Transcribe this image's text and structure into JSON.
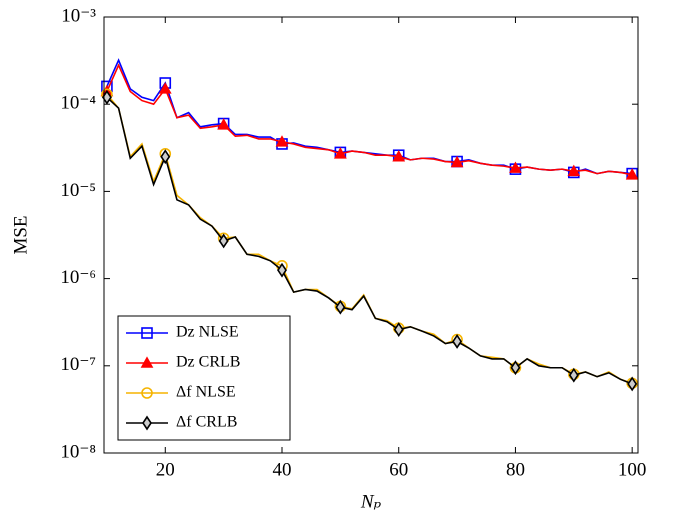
{
  "chart_data": {
    "type": "line",
    "xlabel": "Nₚ",
    "ylabel": "MSE",
    "log_y": true,
    "legend_position": "lower left",
    "xlim": [
      9.5,
      101
    ],
    "ylim": [
      1e-08,
      0.001
    ],
    "xticks": [
      20,
      40,
      60,
      80,
      100
    ],
    "yticks": [
      {
        "value": 1e-08,
        "label": "10⁻⁸"
      },
      {
        "value": 1e-07,
        "label": "10⁻⁷"
      },
      {
        "value": 1e-06,
        "label": "10⁻⁶"
      },
      {
        "value": 1e-05,
        "label": "10⁻⁵"
      },
      {
        "value": 0.0001,
        "label": "10⁻⁴"
      },
      {
        "value": 0.001,
        "label": "10⁻³"
      }
    ],
    "x": [
      10,
      12,
      14,
      16,
      18,
      20,
      22,
      24,
      26,
      28,
      30,
      32,
      34,
      36,
      38,
      40,
      42,
      44,
      46,
      48,
      50,
      52,
      54,
      56,
      58,
      60,
      62,
      64,
      66,
      68,
      70,
      72,
      74,
      76,
      78,
      80,
      82,
      84,
      86,
      88,
      90,
      92,
      94,
      96,
      98,
      100
    ],
    "series": [
      {
        "name": "Dz NLSE",
        "color": "#0000ff",
        "marker": "square",
        "values": [
          0.00016,
          0.00032,
          0.00015,
          0.00012,
          0.00011,
          0.000175,
          7e-05,
          8e-05,
          5.5e-05,
          5.8e-05,
          6e-05,
          4.5e-05,
          4.5e-05,
          4.2e-05,
          4.2e-05,
          3.5e-05,
          3.6e-05,
          3.3e-05,
          3.2e-05,
          3e-05,
          2.8e-05,
          2.9e-05,
          2.8e-05,
          2.7e-05,
          2.6e-05,
          2.6e-05,
          2.3e-05,
          2.4e-05,
          2.4e-05,
          2.2e-05,
          2.2e-05,
          2.3e-05,
          2.1e-05,
          2e-05,
          2e-05,
          1.8e-05,
          1.9e-05,
          1.8e-05,
          1.75e-05,
          1.8e-05,
          1.65e-05,
          1.8e-05,
          1.6e-05,
          1.7e-05,
          1.65e-05,
          1.6e-05
        ]
      },
      {
        "name": "Dz CRLB",
        "color": "#ff0000",
        "marker": "triangle",
        "values": [
          0.00014,
          0.00028,
          0.00014,
          0.00011,
          0.0001,
          0.00015,
          7e-05,
          7.5e-05,
          5.3e-05,
          5.5e-05,
          5.8e-05,
          4.3e-05,
          4.4e-05,
          4e-05,
          4e-05,
          3.7e-05,
          3.5e-05,
          3.2e-05,
          3.1e-05,
          3e-05,
          2.7e-05,
          2.9e-05,
          2.8e-05,
          2.6e-05,
          2.6e-05,
          2.5e-05,
          2.3e-05,
          2.4e-05,
          2.35e-05,
          2.2e-05,
          2.15e-05,
          2.25e-05,
          2.1e-05,
          2e-05,
          1.95e-05,
          1.85e-05,
          1.9e-05,
          1.8e-05,
          1.75e-05,
          1.8e-05,
          1.7e-05,
          1.75e-05,
          1.6e-05,
          1.7e-05,
          1.65e-05,
          1.55e-05
        ]
      },
      {
        "name": "Δf NLSE",
        "color": "#f5b400",
        "marker": "circle",
        "values": [
          0.00013,
          9e-05,
          2.5e-05,
          3.5e-05,
          1.3e-05,
          2.7e-05,
          9e-06,
          7e-06,
          5e-06,
          4e-06,
          2.9e-06,
          3e-06,
          1.9e-06,
          1.9e-06,
          1.6e-06,
          1.4e-06,
          7e-07,
          7.5e-07,
          7.5e-07,
          6e-07,
          4.8e-07,
          4.5e-07,
          6.5e-07,
          3.5e-07,
          3.3e-07,
          2.7e-07,
          2.8e-07,
          2.5e-07,
          2.3e-07,
          1.8e-07,
          2e-07,
          1.6e-07,
          1.3e-07,
          1.25e-07,
          1.2e-07,
          9.5e-08,
          1.2e-07,
          1.05e-07,
          9.5e-08,
          9.5e-08,
          8e-08,
          8.5e-08,
          7.5e-08,
          8.5e-08,
          7e-08,
          6.3e-08
        ]
      },
      {
        "name": "Δf CRLB",
        "color": "#000000",
        "marker": "diamond",
        "values": [
          0.00012,
          9e-05,
          2.4e-05,
          3.3e-05,
          1.2e-05,
          2.5e-05,
          8e-06,
          7e-06,
          4.8e-06,
          4e-06,
          2.7e-06,
          3e-06,
          1.9e-06,
          1.8e-06,
          1.6e-06,
          1.25e-06,
          7e-07,
          7.5e-07,
          7.2e-07,
          6e-07,
          4.7e-07,
          4.4e-07,
          6.3e-07,
          3.5e-07,
          3.2e-07,
          2.6e-07,
          2.8e-07,
          2.5e-07,
          2.2e-07,
          1.8e-07,
          1.9e-07,
          1.6e-07,
          1.3e-07,
          1.2e-07,
          1.2e-07,
          9.5e-08,
          1.2e-07,
          1e-07,
          9.5e-08,
          9.5e-08,
          7.8e-08,
          8.5e-08,
          7.5e-08,
          8.3e-08,
          7e-08,
          6.2e-08
        ]
      }
    ]
  }
}
